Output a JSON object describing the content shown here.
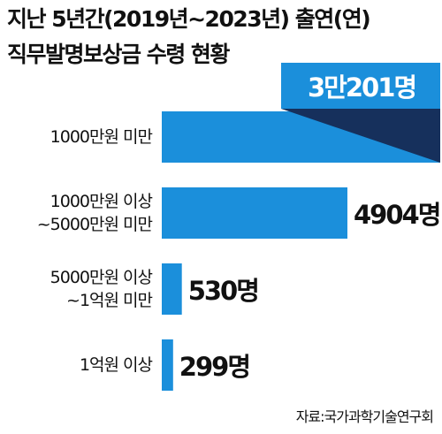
{
  "chart_data": {
    "type": "bar",
    "orientation": "horizontal",
    "title": "지난 5년간(2019년~2023년) 출연(연)\n직무발명보상금 수령 현황",
    "categories": [
      "1000만원 미만",
      "1000만원 이상\n~5000만원 미만",
      "5000만원 이상\n~1억원 미만",
      "1억원 이상"
    ],
    "values": [
      30201,
      4904,
      530,
      299
    ],
    "value_labels": [
      "3만201명",
      "4904명",
      "530명",
      "299명"
    ],
    "color": "#1b8fdb",
    "source": "자료:국가과학기술연구회"
  }
}
